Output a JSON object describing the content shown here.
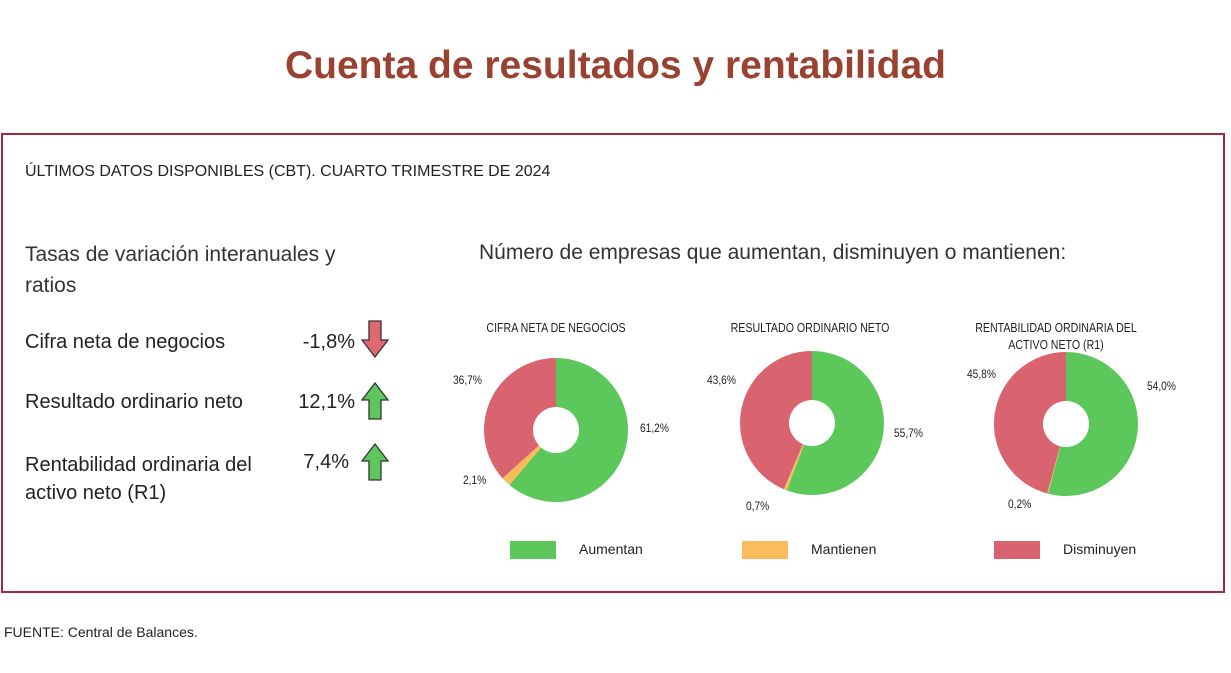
{
  "title": "Cuenta de resultados y rentabilidad",
  "subtitle": "ÚLTIMOS DATOS DISPONIBLES (CBT). CUARTO TRIMESTRE DE 2024",
  "left_heading": "Tasas de variación interanuales y ratios",
  "ratios": [
    {
      "label": "Cifra neta de negocios",
      "value": "-1,8%",
      "direction": "down",
      "icon": "arrow-down-icon"
    },
    {
      "label": "Resultado ordinario neto",
      "value": "12,1%",
      "direction": "up",
      "icon": "arrow-up-icon"
    },
    {
      "label": "Rentabilidad ordinaria del activo neto (R1)",
      "value": "7,4%",
      "direction": "up",
      "icon": "arrow-up-icon"
    }
  ],
  "right_heading": "Número de empresas que aumentan, disminuyen o mantienen:",
  "colors": {
    "aumentan": "#5cc85c",
    "mantienen": "#fcbc5c",
    "disminuyen": "#d9636f",
    "up_arrow": "#5cc85c",
    "down_arrow": "#e06872",
    "title": "#9a4231",
    "border": "#a32a3c"
  },
  "chart_data": [
    {
      "type": "pie",
      "title": "CIFRA NETA DE NEGOCIOS",
      "slices": [
        {
          "name": "Aumentan",
          "value": 61.2,
          "label": "61,2%"
        },
        {
          "name": "Mantienen",
          "value": 2.1,
          "label": "2,1%"
        },
        {
          "name": "Disminuyen",
          "value": 36.7,
          "label": "36,7%"
        }
      ]
    },
    {
      "type": "pie",
      "title": "RESULTADO ORDINARIO NETO",
      "slices": [
        {
          "name": "Aumentan",
          "value": 55.7,
          "label": "55,7%"
        },
        {
          "name": "Mantienen",
          "value": 0.7,
          "label": "0,7%"
        },
        {
          "name": "Disminuyen",
          "value": 43.6,
          "label": "43,6%"
        }
      ]
    },
    {
      "type": "pie",
      "title": "RENTABILIDAD ORDINARIA DEL ACTIVO NETO (R1)",
      "slices": [
        {
          "name": "Aumentan",
          "value": 54.0,
          "label": "54,0%"
        },
        {
          "name": "Mantienen",
          "value": 0.2,
          "label": "0,2%"
        },
        {
          "name": "Disminuyen",
          "value": 45.8,
          "label": "45,8%"
        }
      ]
    }
  ],
  "legend": [
    {
      "label": "Aumentan",
      "color": "#5cc85c"
    },
    {
      "label": "Mantienen",
      "color": "#fcbc5c"
    },
    {
      "label": "Disminuyen",
      "color": "#d9636f"
    }
  ],
  "source": "FUENTE: Central de Balances."
}
